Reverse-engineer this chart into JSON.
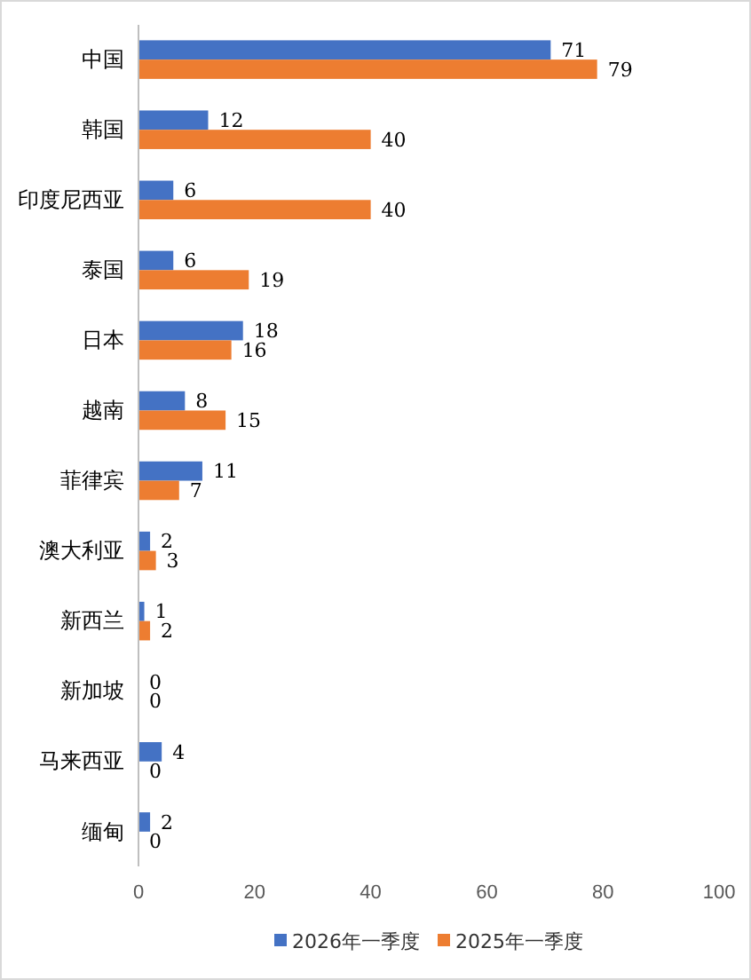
{
  "chart_data": {
    "type": "bar",
    "orientation": "horizontal",
    "categories": [
      "中国",
      "韩国",
      "印度尼西亚",
      "泰国",
      "日本",
      "越南",
      "菲律宾",
      "澳大利亚",
      "新西兰",
      "新加坡",
      "马来西亚",
      "缅甸"
    ],
    "series": [
      {
        "name": "2026年一季度",
        "color": "#4472c4",
        "values": [
          71,
          12,
          6,
          6,
          18,
          8,
          11,
          2,
          1,
          0,
          4,
          2
        ]
      },
      {
        "name": "2025年一季度",
        "color": "#ed7d31",
        "values": [
          79,
          40,
          40,
          19,
          16,
          15,
          7,
          3,
          2,
          0,
          0,
          0
        ]
      }
    ],
    "xlim": [
      0,
      100
    ],
    "xticks": [
      0,
      20,
      40,
      60,
      80,
      100
    ],
    "grid": false,
    "legend": "bottom",
    "data_labels": true
  }
}
